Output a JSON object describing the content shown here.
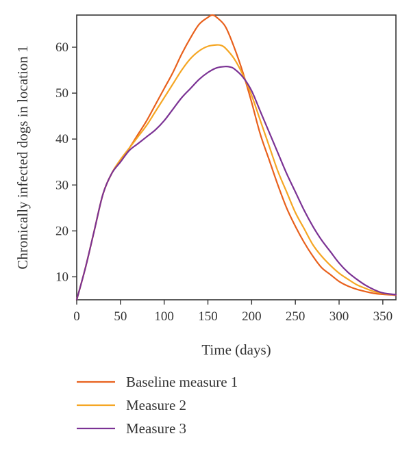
{
  "chart_data": {
    "type": "line",
    "xlabel": "Time (days)",
    "ylabel": "Chronically infected dogs in location 1",
    "xlim": [
      0,
      365
    ],
    "ylim": [
      5,
      67
    ],
    "xticks": [
      0,
      50,
      100,
      150,
      200,
      250,
      300,
      350
    ],
    "yticks": [
      10,
      20,
      30,
      40,
      50,
      60
    ],
    "grid": false,
    "legend_position": "bottom",
    "series": [
      {
        "name": "Baseline measure 1",
        "color": "#e8601c",
        "x": [
          0,
          10,
          20,
          30,
          40,
          50,
          60,
          70,
          80,
          90,
          100,
          110,
          120,
          130,
          140,
          150,
          155,
          160,
          170,
          180,
          190,
          200,
          210,
          220,
          230,
          240,
          250,
          260,
          270,
          280,
          290,
          300,
          310,
          320,
          330,
          340,
          350,
          365
        ],
        "y": [
          5,
          12,
          20,
          28,
          32.5,
          35.5,
          38,
          41,
          44,
          47.5,
          51,
          54.5,
          58.5,
          62,
          65,
          66.5,
          67,
          66.5,
          64.5,
          60,
          54.5,
          48,
          41,
          35.5,
          30,
          25,
          21,
          17.5,
          14.5,
          12,
          10.5,
          9,
          8,
          7.3,
          6.8,
          6.4,
          6.2,
          6
        ]
      },
      {
        "name": "Measure 2",
        "color": "#f5a623",
        "x": [
          0,
          10,
          20,
          30,
          40,
          50,
          60,
          70,
          80,
          90,
          100,
          110,
          120,
          130,
          140,
          150,
          160,
          165,
          170,
          180,
          190,
          200,
          210,
          220,
          230,
          240,
          250,
          260,
          270,
          280,
          290,
          300,
          310,
          320,
          330,
          340,
          350,
          365
        ],
        "y": [
          5,
          12,
          20,
          28,
          32.5,
          35.5,
          38,
          40.5,
          43,
          46,
          49,
          52,
          55,
          57.5,
          59.2,
          60.2,
          60.5,
          60.4,
          59.8,
          57.5,
          54,
          49.5,
          44,
          38.5,
          33,
          28.5,
          24,
          20.5,
          17,
          14.5,
          12.5,
          10.8,
          9.5,
          8.3,
          7.5,
          6.8,
          6.4,
          6.1
        ]
      },
      {
        "name": "Measure 3",
        "color": "#7b3294",
        "x": [
          0,
          10,
          20,
          30,
          40,
          50,
          60,
          70,
          80,
          90,
          100,
          110,
          120,
          130,
          140,
          150,
          160,
          170,
          175,
          180,
          190,
          200,
          210,
          220,
          230,
          240,
          250,
          260,
          270,
          280,
          290,
          300,
          310,
          320,
          330,
          340,
          350,
          365
        ],
        "y": [
          5,
          12,
          20,
          28,
          32.5,
          35,
          37.5,
          39,
          40.5,
          42,
          44,
          46.5,
          49,
          51,
          53,
          54.5,
          55.5,
          55.8,
          55.7,
          55.3,
          53.5,
          50.5,
          46,
          41.5,
          37,
          32.5,
          28.5,
          24.5,
          21,
          18,
          15.5,
          13,
          11,
          9.5,
          8.2,
          7.2,
          6.5,
          6.1
        ]
      }
    ]
  }
}
